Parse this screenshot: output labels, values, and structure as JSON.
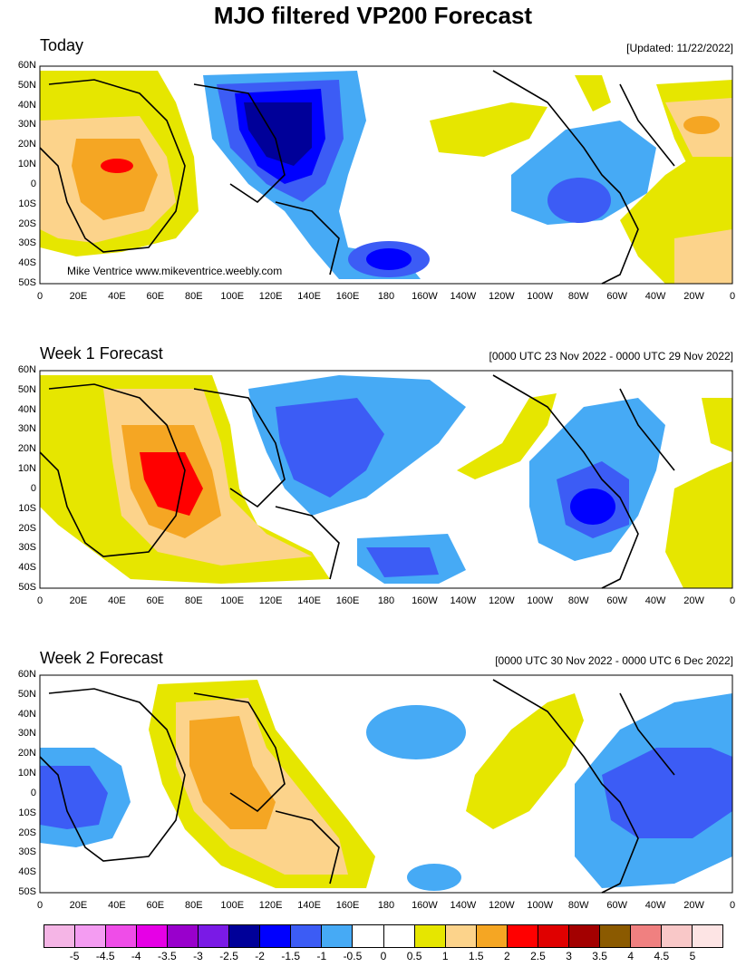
{
  "title": "MJO filtered VP200 Forecast",
  "watermark": "Mike Ventrice www.mikeventrice.weebly.com",
  "panels": [
    {
      "title": "Today",
      "date": "[Updated: 11/22/2022]"
    },
    {
      "title": "Week 1 Forecast",
      "date": "[0000 UTC 23 Nov 2022 - 0000 UTC 29 Nov 2022]"
    },
    {
      "title": "Week 2 Forecast",
      "date": "[0000 UTC 30 Nov 2022 - 0000 UTC 6 Dec 2022]"
    }
  ],
  "lat_labels": [
    "60N",
    "50N",
    "40N",
    "30N",
    "20N",
    "10N",
    "0",
    "10S",
    "20S",
    "30S",
    "40S",
    "50S"
  ],
  "lon_labels": [
    "0",
    "20E",
    "40E",
    "60E",
    "80E",
    "100E",
    "120E",
    "140E",
    "160E",
    "180",
    "160W",
    "140W",
    "120W",
    "100W",
    "80W",
    "60W",
    "40W",
    "20W",
    "0"
  ],
  "colorbar": {
    "colors": [
      "#f5b5e6",
      "#f49cf2",
      "#ef4de8",
      "#e600e6",
      "#9900cc",
      "#7a1ae6",
      "#000099",
      "#0000ff",
      "#3c5cf5",
      "#46aaf5",
      "#ffffff",
      "#ffffff",
      "#e6e600",
      "#fcd38b",
      "#f5a623",
      "#ff0000",
      "#e00000",
      "#a30000",
      "#8b5a00",
      "#f08080",
      "#f9c8c8",
      "#fde4e4"
    ],
    "labels": [
      "-5",
      "-4.5",
      "-4",
      "-3.5",
      "-3",
      "-2.5",
      "-2",
      "-1.5",
      "-1",
      "-0.5",
      "0",
      "0.5",
      "1",
      "1.5",
      "2",
      "2.5",
      "3",
      "3.5",
      "4",
      "4.5",
      "5"
    ]
  }
}
